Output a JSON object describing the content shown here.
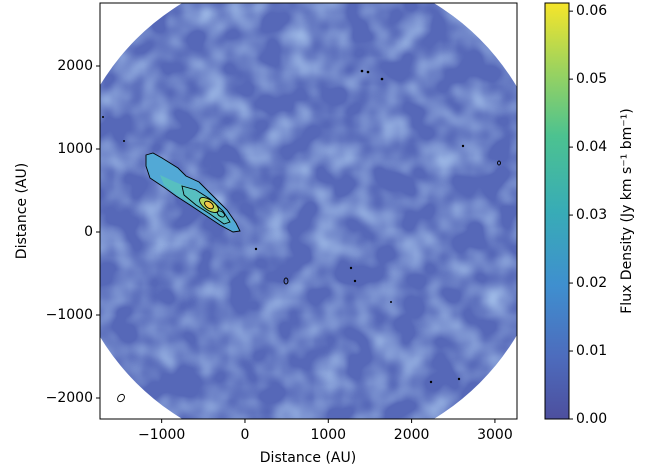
{
  "chart_data": {
    "type": "image",
    "xlabel": "Distance (AU)",
    "ylabel": "Distance (AU)",
    "xlim": [
      -1740,
      3265
    ],
    "ylim": [
      -2253,
      2759
    ],
    "xticks": [
      {
        "value": -1000,
        "label": "−1000"
      },
      0,
      1000,
      2000,
      3000
    ],
    "yticks": [
      {
        "value": -2000,
        "label": "−2000"
      },
      {
        "value": -1000,
        "label": "−1000"
      },
      0,
      1000,
      2000
    ],
    "colorbar": {
      "label": "Flux Density (Jy km s⁻¹ bm⁻¹)",
      "lim": [
        0,
        0.0612
      ],
      "ticks": [
        {
          "value": 0,
          "label": "0.00"
        },
        {
          "value": 0.01,
          "label": "0.01"
        },
        {
          "value": 0.02,
          "label": "0.02"
        },
        {
          "value": 0.03,
          "label": "0.03"
        },
        {
          "value": 0.04,
          "label": "0.04"
        },
        {
          "value": 0.05,
          "label": "0.05"
        },
        {
          "value": 0.06,
          "label": "0.06"
        }
      ]
    }
  }
}
